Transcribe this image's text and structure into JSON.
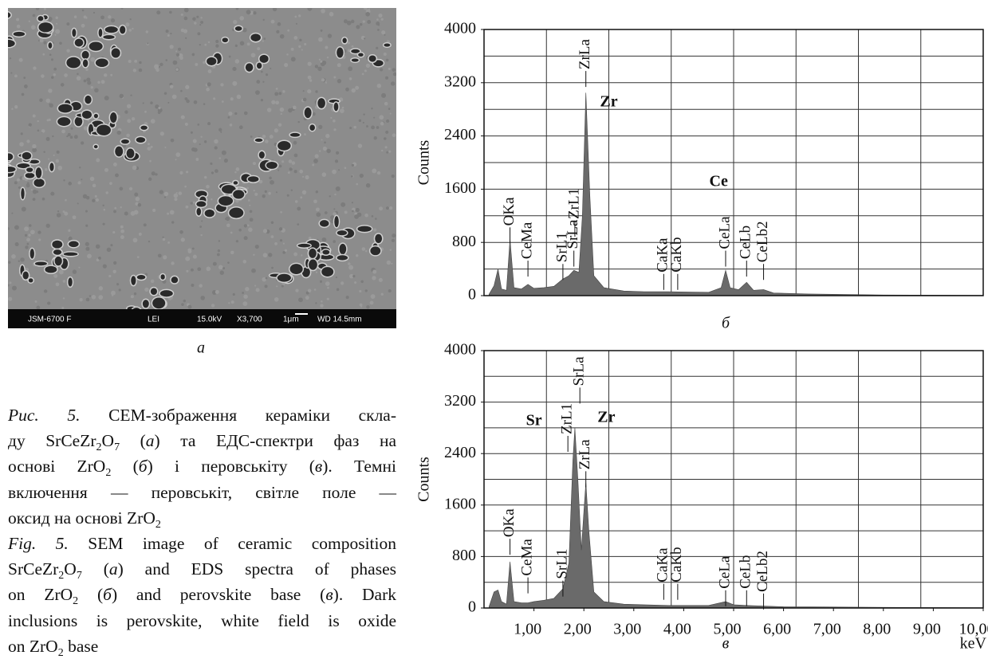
{
  "image": {
    "labels": [
      "JSM-6700 F",
      "LEI",
      "15.0kV",
      "X3,700",
      "1μm",
      "WD 14.5mm"
    ],
    "caption": "а"
  },
  "chart_data": [
    {
      "type": "area",
      "caption": "б",
      "ylabel": "Counts",
      "color": "#6a6a6a",
      "xlim": [
        0,
        10
      ],
      "ylim": [
        0,
        4000
      ],
      "yticks": [
        0,
        800,
        1600,
        2400,
        3200,
        4000
      ],
      "xgrid": [
        1.25,
        2.5,
        3.75,
        5,
        6.25,
        7.5,
        8.75
      ],
      "ygrid": [
        400,
        800,
        1200,
        1600,
        2000,
        2400,
        2800,
        3200,
        3600
      ],
      "x": [
        0.1,
        0.2,
        0.28,
        0.35,
        0.45,
        0.52,
        0.6,
        0.75,
        0.88,
        1.0,
        1.2,
        1.4,
        1.58,
        1.7,
        1.8,
        1.9,
        1.97,
        2.04,
        2.12,
        2.2,
        2.4,
        2.8,
        3.2,
        3.69,
        4.01,
        4.5,
        4.75,
        4.84,
        4.93,
        5.1,
        5.26,
        5.4,
        5.6,
        5.8,
        6.5,
        8,
        10
      ],
      "values": [
        20,
        150,
        400,
        100,
        80,
        850,
        120,
        100,
        170,
        110,
        120,
        140,
        250,
        300,
        380,
        350,
        1200,
        3050,
        1500,
        300,
        120,
        70,
        60,
        60,
        55,
        50,
        120,
        380,
        120,
        90,
        200,
        80,
        90,
        40,
        25,
        10,
        5
      ],
      "annotations": [
        {
          "text": "OKa",
          "x": 0.52,
          "y": 1050
        },
        {
          "text": "CeMa",
          "x": 0.88,
          "y": 550
        },
        {
          "text": "SrL1",
          "x": 1.58,
          "y": 500
        },
        {
          "text": "SrLa",
          "x": 1.8,
          "y": 700
        },
        {
          "text": "ZrL1",
          "x": 1.82,
          "y": 1150
        },
        {
          "text": "ZrLa",
          "x": 2.04,
          "y": 3400
        },
        {
          "text": "CaKa",
          "x": 3.6,
          "y": 350
        },
        {
          "text": "CaKb",
          "x": 3.88,
          "y": 350
        },
        {
          "text": "CeLa",
          "x": 4.84,
          "y": 700
        },
        {
          "text": "CeLb",
          "x": 5.26,
          "y": 550
        },
        {
          "text": "CeLb2",
          "x": 5.6,
          "y": 500
        }
      ],
      "element_labels": [
        {
          "text": "Zr",
          "x": 2.5,
          "y": 2900
        },
        {
          "text": "Ce",
          "x": 4.7,
          "y": 1700
        }
      ]
    },
    {
      "type": "area",
      "caption": "в",
      "ylabel": "Counts",
      "xlabel": "keV",
      "color": "#6a6a6a",
      "xlim": [
        0,
        10
      ],
      "ylim": [
        0,
        4000
      ],
      "yticks": [
        0,
        800,
        1600,
        2400,
        3200,
        4000
      ],
      "xticks": [
        {
          "value": 1,
          "label": "1,00"
        },
        {
          "value": 2,
          "label": "2,00"
        },
        {
          "value": 3,
          "label": "3,00"
        },
        {
          "value": 4,
          "label": "4,00"
        },
        {
          "value": 5,
          "label": "5,00"
        },
        {
          "value": 6,
          "label": "6,00"
        },
        {
          "value": 7,
          "label": "7,00"
        },
        {
          "value": 8,
          "label": "8,00"
        },
        {
          "value": 9,
          "label": "9,00"
        },
        {
          "value": 10,
          "label": "10,00"
        }
      ],
      "xgrid": [
        1.25,
        2.5,
        3.75,
        5,
        6.25,
        7.5,
        8.75
      ],
      "ygrid": [
        400,
        800,
        1200,
        1600,
        2000,
        2400,
        2800,
        3200,
        3600
      ],
      "x": [
        0.1,
        0.2,
        0.28,
        0.35,
        0.45,
        0.52,
        0.6,
        0.75,
        0.88,
        1.0,
        1.2,
        1.4,
        1.58,
        1.7,
        1.78,
        1.82,
        1.88,
        1.95,
        2.0,
        2.04,
        2.1,
        2.2,
        2.4,
        2.8,
        3.2,
        3.69,
        4.01,
        4.5,
        4.84,
        5.0,
        5.26,
        6,
        8,
        10
      ],
      "values": [
        20,
        250,
        280,
        100,
        60,
        720,
        100,
        80,
        80,
        100,
        120,
        150,
        300,
        700,
        2300,
        2800,
        2000,
        900,
        1500,
        1950,
        1200,
        250,
        100,
        60,
        50,
        40,
        40,
        40,
        100,
        50,
        40,
        20,
        10,
        5
      ],
      "annotations": [
        {
          "text": "OKa",
          "x": 0.52,
          "y": 1100
        },
        {
          "text": "CeMa",
          "x": 0.88,
          "y": 500
        },
        {
          "text": "SrL1",
          "x": 1.58,
          "y": 450
        },
        {
          "text": "ZrL1",
          "x": 1.68,
          "y": 2700
        },
        {
          "text": "SrLa",
          "x": 1.92,
          "y": 3450
        },
        {
          "text": "ZrLa",
          "x": 2.04,
          "y": 2150
        },
        {
          "text": "CaKa",
          "x": 3.6,
          "y": 400
        },
        {
          "text": "CaKb",
          "x": 3.88,
          "y": 400
        },
        {
          "text": "CeLa",
          "x": 4.84,
          "y": 300
        },
        {
          "text": "CeLb",
          "x": 5.26,
          "y": 300
        },
        {
          "text": "CeLb2",
          "x": 5.6,
          "y": 250
        }
      ],
      "element_labels": [
        {
          "text": "Sr",
          "x": 1.0,
          "y": 2900
        },
        {
          "text": "Zr",
          "x": 2.45,
          "y": 2950
        }
      ]
    }
  ],
  "caption": [
    [
      {
        "text": "Рис. 5.",
        "style": "italic"
      },
      {
        "text": " СЕМ-зображення кераміки скла-"
      }
    ],
    [
      {
        "text": "ду SrCeZr"
      },
      {
        "text": "2",
        "style": "sub"
      },
      {
        "text": "O"
      },
      {
        "text": "7",
        "style": "sub"
      },
      {
        "text": " ("
      },
      {
        "text": "а",
        "style": "italic"
      },
      {
        "text": ") та ЕДС-спектри фаз на"
      }
    ],
    [
      {
        "text": "основі ZrO"
      },
      {
        "text": "2",
        "style": "sub"
      },
      {
        "text": " ("
      },
      {
        "text": "б",
        "style": "italic"
      },
      {
        "text": ") і перовськіту ("
      },
      {
        "text": "в",
        "style": "italic"
      },
      {
        "text": "). Темні"
      }
    ],
    [
      {
        "text": "включення — перовськіт, світле поле —"
      }
    ],
    [
      {
        "text": "оксид на основі ZrO"
      },
      {
        "text": "2",
        "style": "sub"
      }
    ],
    [
      {
        "text": "Fig. 5.",
        "style": "italic"
      },
      {
        "text": " SEM image of ceramic composition"
      }
    ],
    [
      {
        "text": "SrCeZr"
      },
      {
        "text": "2",
        "style": "sub"
      },
      {
        "text": "O"
      },
      {
        "text": "7",
        "style": "sub"
      },
      {
        "text": " ("
      },
      {
        "text": "a",
        "style": "italic"
      },
      {
        "text": ") and EDS spectra of phases"
      }
    ],
    [
      {
        "text": "on ZrO"
      },
      {
        "text": "2",
        "style": "sub"
      },
      {
        "text": " ("
      },
      {
        "text": "б",
        "style": "italic"
      },
      {
        "text": ") and perovskite base ("
      },
      {
        "text": "в",
        "style": "italic"
      },
      {
        "text": "). Dark"
      }
    ],
    [
      {
        "text": "inclusions is perovskite, white field is oxide"
      }
    ],
    [
      {
        "text": "on ZrO"
      },
      {
        "text": "2",
        "style": "sub"
      },
      {
        "text": " base"
      }
    ]
  ]
}
